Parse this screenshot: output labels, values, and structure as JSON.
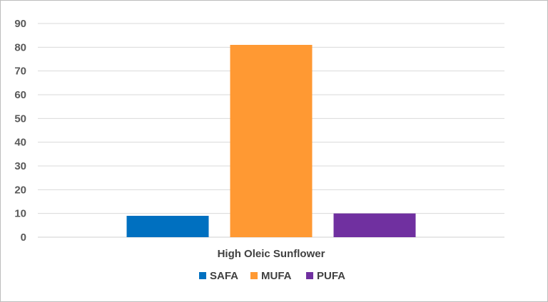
{
  "chart_data": {
    "type": "bar",
    "categories": [
      "High Oleic Sunflower"
    ],
    "series": [
      {
        "name": "SAFA",
        "values": [
          9
        ],
        "color": "#0070c0"
      },
      {
        "name": "MUFA",
        "values": [
          81
        ],
        "color": "#ff9933"
      },
      {
        "name": "PUFA",
        "values": [
          10
        ],
        "color": "#7030a0"
      }
    ],
    "title": "",
    "xlabel": "",
    "ylabel": "",
    "ylim": [
      0,
      90
    ],
    "ytick_step": 10,
    "grid": true,
    "legend_position": "bottom"
  }
}
